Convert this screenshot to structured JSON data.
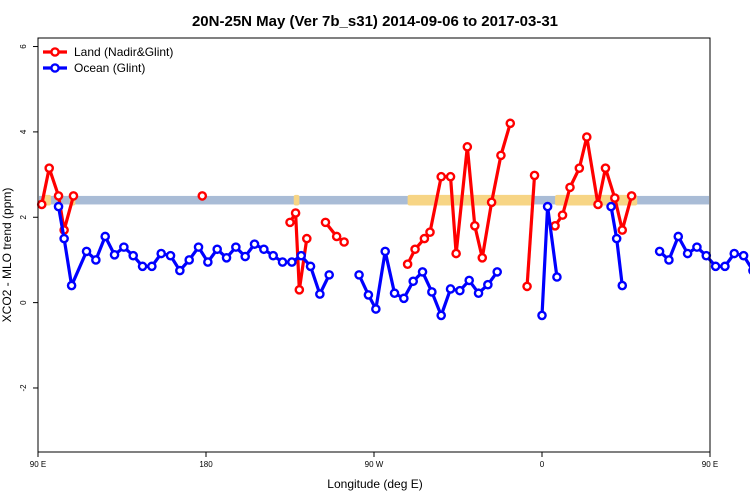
{
  "chart_data": {
    "type": "line",
    "title": "20N-25N May (Ver 7b_s31)   2014-09-06 to 2017-03-31",
    "xlabel": "Longitude (deg E)",
    "ylabel": "XCO2 - MLO trend (ppm)",
    "xlim": [
      90,
      450
    ],
    "ylim": [
      -3.5,
      6.2
    ],
    "x_ticks": [
      {
        "value": 90,
        "label": "90 E"
      },
      {
        "value": 180,
        "label": "180"
      },
      {
        "value": 270,
        "label": "90 W"
      },
      {
        "value": 360,
        "label": "0"
      },
      {
        "value": 450,
        "label": "90 E"
      },
      {
        "value": 540,
        "label": "180"
      }
    ],
    "y_ticks": [
      -2,
      0,
      2,
      4,
      6
    ],
    "legend_position": "top-left",
    "band": {
      "y_low": 2.3,
      "y_high": 2.5
    },
    "series": [
      {
        "name": "Land (Nadir&Glint)",
        "color": "#ff0000",
        "segments": [
          [
            [
              92,
              2.3
            ],
            [
              96,
              3.15
            ],
            [
              101,
              2.5
            ],
            [
              104,
              1.7
            ],
            [
              109,
              2.5
            ]
          ],
          [
            [
              178,
              2.5
            ]
          ],
          [
            [
              225,
              1.88
            ],
            [
              228,
              2.1
            ],
            [
              230,
              0.3
            ],
            [
              234,
              1.5
            ]
          ],
          [
            [
              244,
              1.88
            ],
            [
              250,
              1.55
            ],
            [
              254,
              1.42
            ]
          ],
          [
            [
              288,
              0.9
            ],
            [
              292,
              1.25
            ],
            [
              297,
              1.5
            ],
            [
              300,
              1.65
            ],
            [
              306,
              2.95
            ],
            [
              311,
              2.95
            ],
            [
              314,
              1.15
            ],
            [
              320,
              3.65
            ],
            [
              324,
              1.8
            ],
            [
              328,
              1.05
            ],
            [
              333,
              2.35
            ],
            [
              338,
              3.45
            ],
            [
              343,
              4.2
            ]
          ],
          [
            [
              352,
              0.38
            ],
            [
              356,
              2.98
            ]
          ],
          [
            [
              367,
              1.8
            ],
            [
              371,
              2.05
            ],
            [
              375,
              2.7
            ],
            [
              380,
              3.15
            ],
            [
              384,
              3.88
            ],
            [
              390,
              2.3
            ],
            [
              394,
              3.15
            ],
            [
              399,
              2.45
            ],
            [
              403,
              1.7
            ],
            [
              408,
              2.5
            ]
          ]
        ]
      },
      {
        "name": "Ocean (Glint)",
        "color": "#0000ff",
        "segments": [
          [
            [
              101,
              2.25
            ],
            [
              104,
              1.5
            ],
            [
              108,
              0.4
            ],
            [
              116,
              1.2
            ],
            [
              121,
              1.0
            ],
            [
              126,
              1.55
            ],
            [
              131,
              1.12
            ],
            [
              136,
              1.3
            ],
            [
              141,
              1.1
            ],
            [
              146,
              0.85
            ],
            [
              151,
              0.85
            ],
            [
              156,
              1.15
            ],
            [
              161,
              1.1
            ],
            [
              166,
              0.75
            ],
            [
              171,
              1.0
            ],
            [
              176,
              1.3
            ],
            [
              181,
              0.95
            ],
            [
              186,
              1.25
            ],
            [
              191,
              1.05
            ],
            [
              196,
              1.3
            ],
            [
              201,
              1.08
            ],
            [
              206,
              1.37
            ],
            [
              211,
              1.25
            ],
            [
              216,
              1.1
            ],
            [
              221,
              0.95
            ],
            [
              226,
              0.95
            ],
            [
              231,
              1.1
            ],
            [
              236,
              0.85
            ],
            [
              241,
              0.2
            ],
            [
              246,
              0.65
            ]
          ],
          [
            [
              262,
              0.65
            ],
            [
              267,
              0.18
            ],
            [
              271,
              -0.15
            ],
            [
              276,
              1.2
            ],
            [
              281,
              0.22
            ],
            [
              286,
              0.1
            ],
            [
              291,
              0.5
            ],
            [
              296,
              0.72
            ],
            [
              301,
              0.25
            ],
            [
              306,
              -0.3
            ],
            [
              311,
              0.32
            ],
            [
              316,
              0.28
            ],
            [
              321,
              0.52
            ],
            [
              326,
              0.22
            ],
            [
              331,
              0.42
            ],
            [
              336,
              0.72
            ]
          ],
          [
            [
              360,
              -0.3
            ],
            [
              363,
              2.25
            ],
            [
              368,
              0.6
            ]
          ],
          [
            [
              397,
              2.25
            ],
            [
              400,
              1.5
            ],
            [
              403,
              0.4
            ]
          ],
          [
            [
              423,
              1.2
            ],
            [
              428,
              1.0
            ],
            [
              433,
              1.55
            ],
            [
              438,
              1.15
            ],
            [
              443,
              1.3
            ],
            [
              448,
              1.1
            ],
            [
              453,
              0.85
            ],
            [
              458,
              0.85
            ],
            [
              463,
              1.15
            ],
            [
              468,
              1.1
            ],
            [
              473,
              0.75
            ],
            [
              478,
              0.95
            ]
          ]
        ]
      }
    ]
  }
}
